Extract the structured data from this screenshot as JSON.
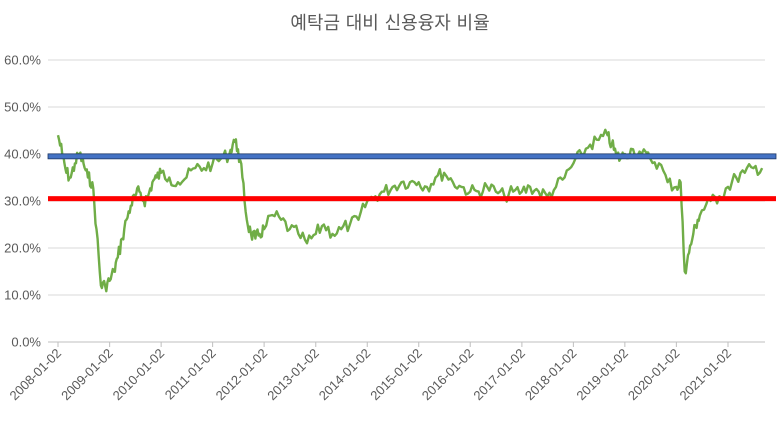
{
  "chart_data": {
    "type": "line",
    "title": "예탁금 대비 신용융자 비율",
    "xlabel": "",
    "ylabel": "",
    "ylim": [
      0,
      60
    ],
    "y_ticks": [
      "0.0%",
      "10.0%",
      "20.0%",
      "30.0%",
      "40.0%",
      "50.0%",
      "60.0%"
    ],
    "x_ticks": [
      "2008-01-02",
      "2009-01-02",
      "2010-01-02",
      "2011-01-02",
      "2012-01-02",
      "2013-01-02",
      "2014-01-02",
      "2015-01-02",
      "2016-01-02",
      "2017-01-02",
      "2018-01-02",
      "2019-01-02",
      "2020-01-02",
      "2021-01-02"
    ],
    "grid": true,
    "legend": "none",
    "series": [
      {
        "color": "#70ad47",
        "points": [
          [
            "2008-01-02",
            44
          ],
          [
            "2008-02-01",
            40
          ],
          [
            "2008-03-01",
            36
          ],
          [
            "2008-04-01",
            35
          ],
          [
            "2008-05-01",
            38
          ],
          [
            "2008-06-01",
            40
          ],
          [
            "2008-07-01",
            38
          ],
          [
            "2008-08-01",
            35
          ],
          [
            "2008-09-01",
            34
          ],
          [
            "2008-10-01",
            24
          ],
          [
            "2008-11-01",
            12
          ],
          [
            "2008-12-01",
            12
          ],
          [
            "2009-01-02",
            13
          ],
          [
            "2009-02-01",
            15
          ],
          [
            "2009-03-01",
            18
          ],
          [
            "2009-04-01",
            22
          ],
          [
            "2009-05-01",
            26
          ],
          [
            "2009-06-01",
            29
          ],
          [
            "2009-07-01",
            31
          ],
          [
            "2009-08-01",
            32
          ],
          [
            "2009-09-01",
            30
          ],
          [
            "2009-10-01",
            31
          ],
          [
            "2009-11-01",
            34
          ],
          [
            "2009-12-01",
            35
          ],
          [
            "2010-01-02",
            36
          ],
          [
            "2010-03-01",
            35
          ],
          [
            "2010-05-01",
            34
          ],
          [
            "2010-07-01",
            35
          ],
          [
            "2010-09-01",
            37
          ],
          [
            "2010-11-01",
            37
          ],
          [
            "2011-01-02",
            38
          ],
          [
            "2011-03-01",
            39
          ],
          [
            "2011-05-01",
            40
          ],
          [
            "2011-06-01",
            43
          ],
          [
            "2011-07-01",
            41
          ],
          [
            "2011-08-01",
            35
          ],
          [
            "2011-09-01",
            26
          ],
          [
            "2011-10-01",
            23
          ],
          [
            "2011-11-01",
            22
          ],
          [
            "2011-12-01",
            23
          ],
          [
            "2012-01-02",
            24
          ],
          [
            "2012-03-01",
            27
          ],
          [
            "2012-05-01",
            26
          ],
          [
            "2012-07-01",
            24
          ],
          [
            "2012-09-01",
            23
          ],
          [
            "2012-11-01",
            21
          ],
          [
            "2013-01-02",
            23
          ],
          [
            "2013-03-01",
            25
          ],
          [
            "2013-05-01",
            23
          ],
          [
            "2013-07-01",
            24
          ],
          [
            "2013-09-01",
            25
          ],
          [
            "2013-11-01",
            26
          ],
          [
            "2014-01-02",
            30
          ],
          [
            "2014-03-01",
            31
          ],
          [
            "2014-05-01",
            32
          ],
          [
            "2014-07-01",
            33
          ],
          [
            "2014-09-01",
            34
          ],
          [
            "2014-11-01",
            34
          ],
          [
            "2015-01-02",
            34
          ],
          [
            "2015-03-01",
            33
          ],
          [
            "2015-05-01",
            35
          ],
          [
            "2015-07-01",
            36
          ],
          [
            "2015-09-01",
            34
          ],
          [
            "2015-11-01",
            33
          ],
          [
            "2016-01-02",
            32
          ],
          [
            "2016-03-01",
            32
          ],
          [
            "2016-05-01",
            33
          ],
          [
            "2016-07-01",
            32
          ],
          [
            "2016-09-01",
            31
          ],
          [
            "2016-11-01",
            32
          ],
          [
            "2017-01-02",
            32
          ],
          [
            "2017-03-01",
            33
          ],
          [
            "2017-05-01",
            32
          ],
          [
            "2017-07-01",
            31
          ],
          [
            "2017-09-01",
            33
          ],
          [
            "2017-11-01",
            35
          ],
          [
            "2018-01-02",
            38
          ],
          [
            "2018-03-01",
            40
          ],
          [
            "2018-05-01",
            42
          ],
          [
            "2018-07-01",
            43
          ],
          [
            "2018-09-01",
            44
          ],
          [
            "2018-10-01",
            42
          ],
          [
            "2018-11-01",
            40
          ],
          [
            "2018-12-01",
            39
          ],
          [
            "2019-01-02",
            40
          ],
          [
            "2019-03-01",
            41
          ],
          [
            "2019-05-01",
            40
          ],
          [
            "2019-07-01",
            39
          ],
          [
            "2019-09-01",
            38
          ],
          [
            "2019-11-01",
            34
          ],
          [
            "2020-01-02",
            33
          ],
          [
            "2020-02-01",
            34
          ],
          [
            "2020-03-01",
            15
          ],
          [
            "2020-04-01",
            19
          ],
          [
            "2020-05-01",
            23
          ],
          [
            "2020-06-01",
            26
          ],
          [
            "2020-07-01",
            28
          ],
          [
            "2020-09-01",
            30
          ],
          [
            "2020-11-01",
            31
          ],
          [
            "2021-01-02",
            33
          ],
          [
            "2021-03-01",
            35
          ],
          [
            "2021-05-01",
            36
          ],
          [
            "2021-07-01",
            37
          ],
          [
            "2021-09-01",
            37
          ]
        ]
      }
    ],
    "reference_lines": [
      {
        "y": 39.5,
        "color": "#4472c4"
      },
      {
        "y": 30.5,
        "color": "#ff0000"
      }
    ]
  }
}
